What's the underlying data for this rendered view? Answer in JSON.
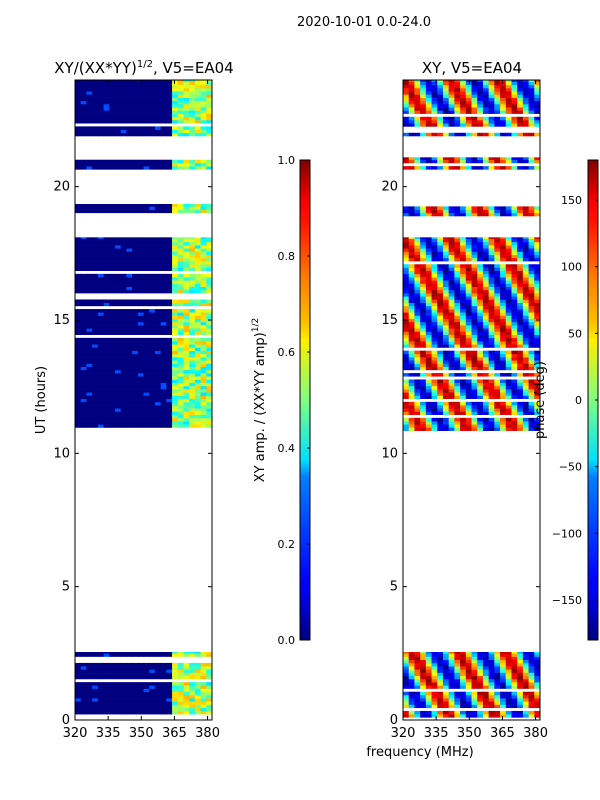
{
  "suptitle": "2020-10-01 0.0-24.0",
  "xlabel_shared": "frequency (MHz)",
  "colors": {
    "low_amp": "#00007f",
    "mid": "#7fff7f",
    "high": "#7f0000"
  },
  "chart_data": [
    {
      "type": "heatmap",
      "title_text": "XY/(XX*YY)",
      "title_exp": "1/2",
      "title_suffix": ", V5=EA04",
      "ylabel": "UT (hours)",
      "xlim": [
        320,
        382
      ],
      "ylim": [
        0,
        24
      ],
      "xticks": [
        320,
        335,
        350,
        365,
        380
      ],
      "xtick_labels": [
        "320",
        "335",
        "350",
        "365",
        "380"
      ],
      "yticks": [
        0,
        5,
        10,
        15,
        20
      ],
      "ytick_labels": [
        "0",
        "5",
        "10",
        "15",
        "20"
      ],
      "colorbar": {
        "label_text": "XY amp. / (XX*YY amp)",
        "label_exp": "1/2",
        "colormap": "jet",
        "range": [
          0.0,
          1.0
        ],
        "ticks": [
          0.0,
          0.2,
          0.4,
          0.6,
          0.8,
          1.0
        ],
        "tick_labels": [
          "0.0",
          "0.2",
          "0.4",
          "0.6",
          "0.8",
          "1.0"
        ]
      },
      "data_bands_hours": [
        [
          0.1,
          2.55
        ],
        [
          10.85,
          18.1
        ],
        [
          18.9,
          19.35
        ],
        [
          20.65,
          21.1
        ],
        [
          21.9,
          24.0
        ]
      ],
      "bright_freq_range_mhz": [
        362,
        382
      ]
    },
    {
      "type": "heatmap",
      "title_text": "XY, V5=EA04",
      "ylabel": "",
      "xlim": [
        320,
        382
      ],
      "ylim": [
        0,
        24
      ],
      "xticks": [
        320,
        335,
        350,
        365,
        380
      ],
      "xtick_labels": [
        "320",
        "335",
        "350",
        "365",
        "380"
      ],
      "yticks": [
        0,
        5,
        10,
        15,
        20
      ],
      "ytick_labels": [
        "0",
        "5",
        "10",
        "15",
        "20"
      ],
      "colorbar": {
        "label_text": "phase (deg)",
        "colormap": "jet",
        "range": [
          -180,
          180
        ],
        "ticks": [
          -150,
          -100,
          -50,
          0,
          50,
          100,
          150
        ],
        "tick_labels": [
          "−150",
          "−100",
          "−50",
          "0",
          "50",
          "100",
          "150"
        ]
      },
      "data_bands_hours": [
        [
          0.1,
          2.55
        ],
        [
          10.85,
          18.1
        ],
        [
          18.9,
          19.35
        ],
        [
          20.65,
          21.1
        ],
        [
          21.9,
          24.0
        ]
      ]
    }
  ]
}
